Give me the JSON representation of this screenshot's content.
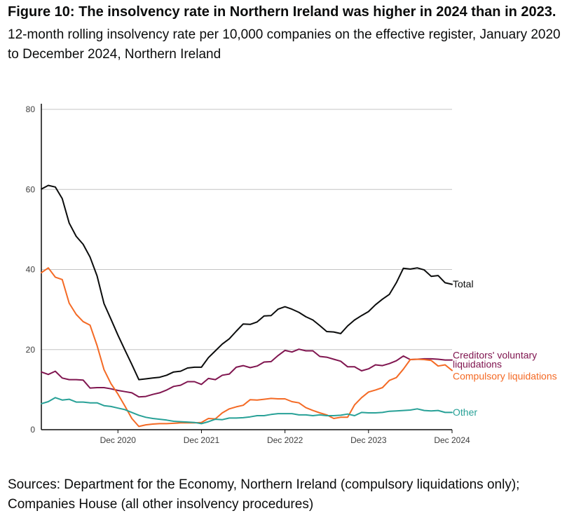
{
  "header": {
    "title": "Figure 10: The insolvency rate in Northern Ireland was higher in 2024 than in 2023.",
    "subtitle": "12-month rolling insolvency rate per 10,000 companies on the effective register, January 2020 to December 2024, Northern Ireland"
  },
  "footer": {
    "sources": "Sources: Department for the Economy, Northern Ireland (compulsory liquidations only); Companies House (all other insolvency procedures)"
  },
  "chart_data": {
    "type": "line",
    "ylim": [
      0,
      80
    ],
    "yticks": [
      "0",
      "20",
      "40",
      "60",
      "80"
    ],
    "xtick_labels": [
      "Dec 2020",
      "Dec 2021",
      "Dec 2022",
      "Dec 2023",
      "Dec 2024"
    ],
    "x": [
      "Jan 2020",
      "Feb 2020",
      "Mar 2020",
      "Apr 2020",
      "May 2020",
      "Jun 2020",
      "Jul 2020",
      "Aug 2020",
      "Sep 2020",
      "Oct 2020",
      "Nov 2020",
      "Dec 2020",
      "Jan 2021",
      "Feb 2021",
      "Mar 2021",
      "Apr 2021",
      "May 2021",
      "Jun 2021",
      "Jul 2021",
      "Aug 2021",
      "Sep 2021",
      "Oct 2021",
      "Nov 2021",
      "Dec 2021",
      "Jan 2022",
      "Feb 2022",
      "Mar 2022",
      "Apr 2022",
      "May 2022",
      "Jun 2022",
      "Jul 2022",
      "Aug 2022",
      "Sep 2022",
      "Oct 2022",
      "Nov 2022",
      "Dec 2022",
      "Jan 2023",
      "Feb 2023",
      "Mar 2023",
      "Apr 2023",
      "May 2023",
      "Jun 2023",
      "Jul 2023",
      "Aug 2023",
      "Sep 2023",
      "Oct 2023",
      "Nov 2023",
      "Dec 2023",
      "Jan 2024",
      "Feb 2024",
      "Mar 2024",
      "Apr 2024",
      "May 2024",
      "Jun 2024",
      "Jul 2024",
      "Aug 2024",
      "Sep 2024",
      "Oct 2024",
      "Nov 2024",
      "Dec 2024"
    ],
    "series": [
      {
        "name": "Total",
        "color": "#0b0c0c",
        "label": [
          "Total"
        ],
        "values": [
          60.1,
          61.0,
          60.6,
          57.7,
          51.6,
          48.3,
          46.3,
          43.1,
          38.4,
          31.5,
          27.6,
          23.6,
          19.9,
          16.3,
          12.5,
          12.7,
          12.9,
          13.1,
          13.6,
          14.4,
          14.6,
          15.4,
          15.6,
          15.6,
          18.0,
          19.7,
          21.4,
          22.7,
          24.6,
          26.4,
          26.3,
          26.9,
          28.4,
          28.5,
          30.1,
          30.7,
          30.1,
          29.3,
          28.2,
          27.4,
          26.0,
          24.5,
          24.4,
          24.0,
          25.9,
          27.4,
          28.5,
          29.5,
          31.2,
          32.6,
          33.8,
          36.7,
          40.3,
          40.1,
          40.4,
          39.9,
          38.3,
          38.5,
          36.7,
          36.3
        ]
      },
      {
        "name": "Creditors' voluntary liquidations",
        "color": "#801650",
        "label": [
          "Creditors' voluntary",
          "liquidations"
        ],
        "values": [
          14.4,
          13.8,
          14.6,
          12.9,
          12.5,
          12.5,
          12.4,
          10.4,
          10.5,
          10.5,
          10.2,
          9.8,
          9.5,
          9.2,
          8.2,
          8.3,
          8.8,
          9.2,
          9.9,
          10.8,
          11.1,
          12.0,
          12.0,
          11.3,
          12.8,
          12.5,
          13.6,
          13.9,
          15.6,
          16.0,
          15.5,
          15.9,
          16.9,
          17.0,
          18.5,
          19.8,
          19.4,
          20.1,
          19.7,
          19.7,
          18.3,
          18.1,
          17.6,
          17.1,
          15.7,
          15.7,
          14.7,
          15.2,
          16.2,
          16.0,
          16.5,
          17.2,
          18.4,
          17.5,
          17.6,
          17.7,
          17.7,
          17.6,
          17.4,
          17.4
        ]
      },
      {
        "name": "Compulsory liquidations",
        "color": "#f46a25",
        "label": [
          "Compulsory liquidations"
        ],
        "values": [
          39.2,
          40.4,
          38.1,
          37.5,
          31.6,
          28.8,
          27.0,
          26.1,
          21.0,
          15.0,
          11.5,
          8.9,
          5.9,
          2.8,
          0.8,
          1.2,
          1.4,
          1.5,
          1.5,
          1.6,
          1.7,
          1.7,
          1.7,
          1.8,
          2.8,
          2.7,
          4.2,
          5.2,
          5.7,
          6.1,
          7.5,
          7.4,
          7.6,
          7.8,
          7.7,
          7.7,
          7.0,
          6.7,
          5.5,
          4.8,
          4.2,
          3.7,
          2.8,
          3.1,
          3.1,
          6.2,
          8.0,
          9.4,
          9.9,
          10.5,
          12.3,
          13.0,
          15.1,
          17.5,
          17.6,
          17.5,
          17.3,
          15.9,
          16.2,
          14.8
        ]
      },
      {
        "name": "Other",
        "color": "#28a197",
        "label": [
          "Other"
        ],
        "values": [
          6.5,
          7.0,
          8.0,
          7.4,
          7.6,
          6.9,
          6.9,
          6.7,
          6.7,
          6.0,
          5.8,
          5.4,
          5.0,
          4.3,
          3.6,
          3.1,
          2.8,
          2.6,
          2.4,
          2.1,
          2.0,
          1.9,
          1.8,
          1.5,
          2.0,
          2.6,
          2.5,
          2.9,
          2.9,
          3.0,
          3.2,
          3.5,
          3.5,
          3.8,
          4.0,
          4.0,
          4.0,
          3.7,
          3.7,
          3.5,
          3.7,
          3.5,
          3.5,
          3.6,
          3.9,
          3.5,
          4.3,
          4.2,
          4.2,
          4.3,
          4.6,
          4.7,
          4.8,
          4.9,
          5.2,
          4.8,
          4.7,
          4.8,
          4.3,
          4.3
        ]
      }
    ],
    "grid": "horizontal",
    "legend": "direct labels at line ends"
  }
}
